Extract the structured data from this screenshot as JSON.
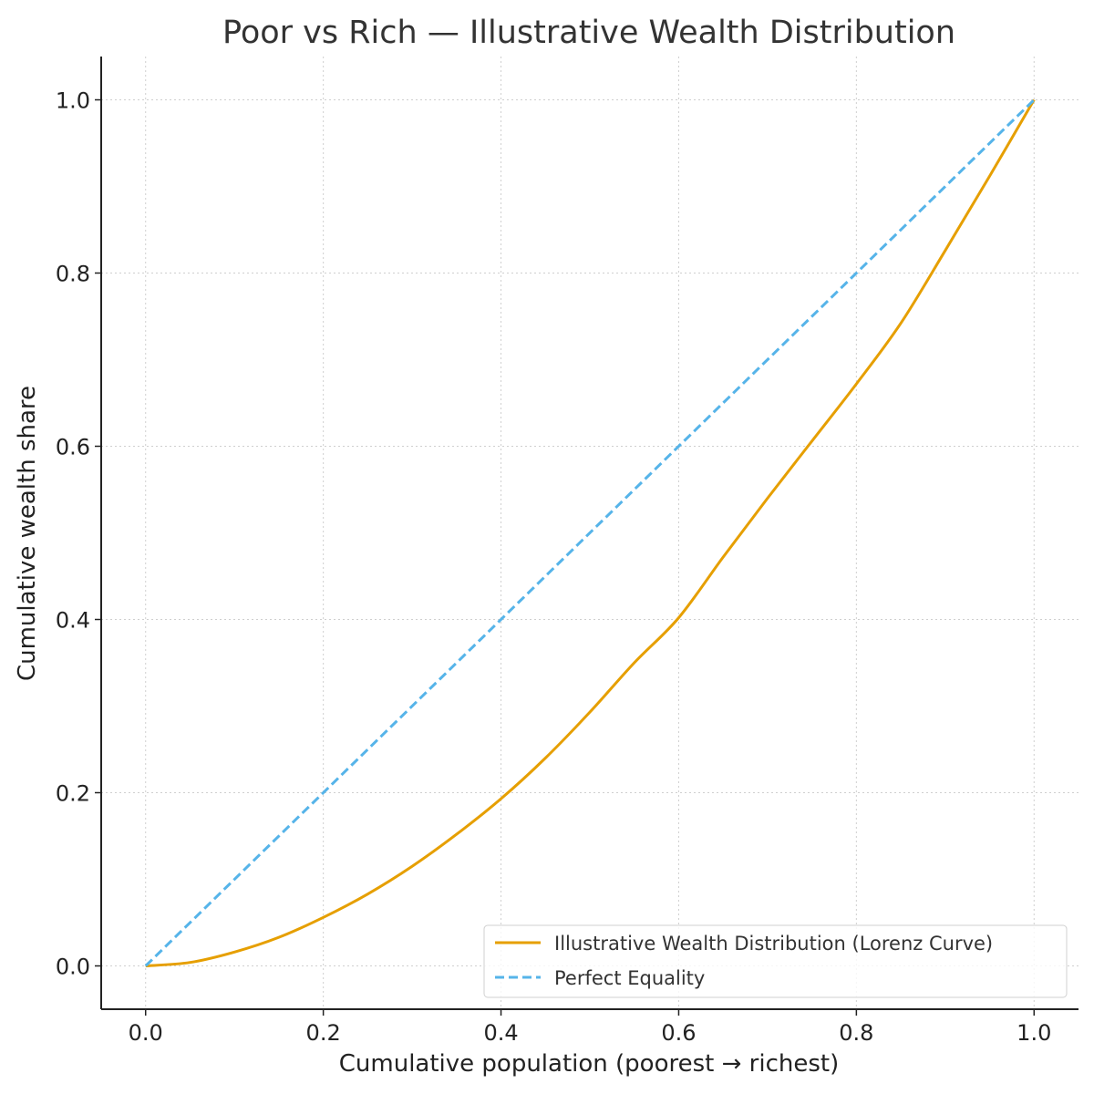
{
  "chart_data": {
    "type": "line",
    "title": "Poor vs Rich — Illustrative Wealth Distribution",
    "xlabel": "Cumulative population (poorest → richest)",
    "ylabel": "Cumulative wealth share",
    "xlim": [
      -0.05,
      1.05
    ],
    "ylim": [
      -0.05,
      1.05
    ],
    "x_ticks": [
      "0.0",
      "0.2",
      "0.4",
      "0.6",
      "0.8",
      "1.0"
    ],
    "y_ticks": [
      "0.0",
      "0.2",
      "0.4",
      "0.6",
      "0.8",
      "1.0"
    ],
    "grid": true,
    "legend_position": "bottom-right",
    "series": [
      {
        "name": "Illustrative Wealth Distribution (Lorenz Curve)",
        "color": "#E69F00",
        "style": "solid",
        "x": [
          0.0,
          0.05,
          0.1,
          0.15,
          0.2,
          0.25,
          0.3,
          0.35,
          0.4,
          0.45,
          0.5,
          0.55,
          0.6,
          0.65,
          0.7,
          0.75,
          0.8,
          0.85,
          0.9,
          0.95,
          1.0
        ],
        "y": [
          0.0,
          0.004,
          0.016,
          0.033,
          0.056,
          0.083,
          0.115,
          0.152,
          0.193,
          0.24,
          0.293,
          0.35,
          0.402,
          0.472,
          0.54,
          0.606,
          0.672,
          0.742,
          0.826,
          0.912,
          1.0
        ]
      },
      {
        "name": "Perfect Equality",
        "color": "#56B4E9",
        "style": "dashed",
        "x": [
          0.0,
          1.0
        ],
        "y": [
          0.0,
          1.0
        ]
      }
    ]
  }
}
